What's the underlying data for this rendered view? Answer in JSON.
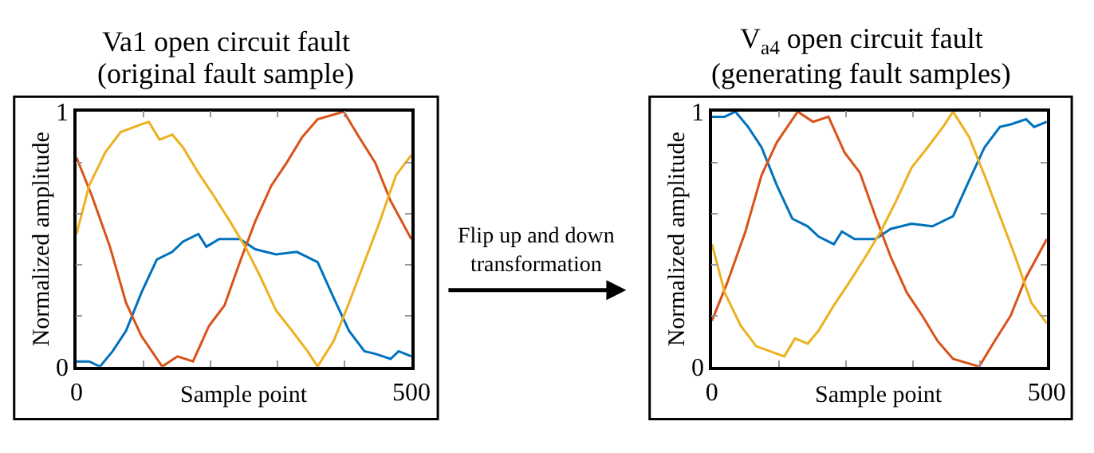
{
  "chart_data": [
    {
      "type": "line",
      "title": "Va1 open circuit fault",
      "subtitle": "(original fault sample)",
      "xlabel": "Sample point",
      "ylabel": "Normalized amplitude",
      "xlim": [
        0,
        500
      ],
      "ylim": [
        0,
        1
      ],
      "xticks": [
        0,
        {
          "value": 100,
          "label": null
        },
        {
          "value": 200,
          "label": null
        },
        {
          "value": 300,
          "label": null
        },
        {
          "value": 400,
          "label": null
        },
        500
      ],
      "yticks": [
        0,
        {
          "value": 0.2,
          "label": null
        },
        {
          "value": 0.4,
          "label": null
        },
        {
          "value": 0.6,
          "label": null
        },
        {
          "value": 0.8,
          "label": null
        },
        1
      ],
      "annotations": [
        "Flip up and down\ntransformation"
      ],
      "series": [
        {
          "color": "#0072bd",
          "x": [
            0,
            19,
            35,
            54,
            74,
            97,
            120,
            143,
            159,
            182,
            194,
            213,
            244,
            267,
            298,
            329,
            360,
            384,
            407,
            430,
            446,
            469,
            481,
            500
          ],
          "values": [
            0.02,
            0.02,
            0.0,
            0.06,
            0.14,
            0.29,
            0.42,
            0.45,
            0.49,
            0.52,
            0.47,
            0.5,
            0.5,
            0.46,
            0.44,
            0.45,
            0.41,
            0.27,
            0.14,
            0.06,
            0.05,
            0.03,
            0.06,
            0.04
          ]
        },
        {
          "color": "#d95319",
          "x": [
            0,
            23,
            50,
            74,
            97,
            128,
            151,
            174,
            198,
            221,
            244,
            267,
            291,
            314,
            337,
            360,
            399,
            422,
            446,
            469,
            500
          ],
          "values": [
            0.82,
            0.67,
            0.47,
            0.25,
            0.12,
            0.0,
            0.04,
            0.02,
            0.16,
            0.24,
            0.41,
            0.57,
            0.71,
            0.8,
            0.9,
            0.97,
            1.0,
            0.9,
            0.8,
            0.65,
            0.5
          ]
        },
        {
          "color": "#edb120",
          "x": [
            0,
            19,
            43,
            66,
            97,
            108,
            124,
            143,
            159,
            182,
            205,
            229,
            252,
            275,
            298,
            322,
            345,
            360,
            384,
            407,
            430,
            453,
            477,
            500
          ],
          "values": [
            0.52,
            0.71,
            0.84,
            0.92,
            0.95,
            0.96,
            0.89,
            0.91,
            0.86,
            0.76,
            0.67,
            0.57,
            0.47,
            0.35,
            0.22,
            0.14,
            0.06,
            0.0,
            0.1,
            0.25,
            0.41,
            0.57,
            0.75,
            0.83
          ]
        }
      ]
    },
    {
      "type": "line",
      "title": "V$_{a4}$ open circuit fault",
      "subtitle": "(generating fault samples)",
      "xlabel": "Sample point",
      "ylabel": "Normalized amplitude",
      "xlim": [
        0,
        500
      ],
      "ylim": [
        0,
        1
      ],
      "xticks": [
        0,
        {
          "value": 100,
          "label": null
        },
        {
          "value": 200,
          "label": null
        },
        {
          "value": 300,
          "label": null
        },
        {
          "value": 400,
          "label": null
        },
        500
      ],
      "yticks": [
        0,
        {
          "value": 0.2,
          "label": null
        },
        {
          "value": 0.4,
          "label": null
        },
        {
          "value": 0.6,
          "label": null
        },
        {
          "value": 0.8,
          "label": null
        },
        1
      ],
      "series": [
        {
          "color": "#0072bd",
          "x": [
            0,
            19,
            35,
            54,
            74,
            97,
            120,
            143,
            159,
            182,
            194,
            213,
            244,
            267,
            298,
            329,
            360,
            384,
            407,
            430,
            446,
            469,
            481,
            500
          ],
          "values": [
            0.98,
            0.98,
            1.0,
            0.94,
            0.86,
            0.71,
            0.58,
            0.55,
            0.51,
            0.48,
            0.53,
            0.5,
            0.5,
            0.54,
            0.56,
            0.55,
            0.59,
            0.73,
            0.86,
            0.94,
            0.95,
            0.97,
            0.94,
            0.96
          ]
        },
        {
          "color": "#d95319",
          "x": [
            0,
            23,
            50,
            74,
            97,
            128,
            151,
            174,
            198,
            221,
            244,
            267,
            291,
            314,
            337,
            360,
            399,
            422,
            446,
            469,
            500
          ],
          "values": [
            0.18,
            0.33,
            0.53,
            0.75,
            0.88,
            1.0,
            0.96,
            0.98,
            0.84,
            0.76,
            0.59,
            0.43,
            0.29,
            0.2,
            0.1,
            0.03,
            0.0,
            0.1,
            0.2,
            0.35,
            0.5
          ]
        },
        {
          "color": "#edb120",
          "x": [
            0,
            19,
            43,
            66,
            97,
            108,
            124,
            143,
            159,
            182,
            205,
            229,
            252,
            275,
            298,
            322,
            345,
            360,
            384,
            407,
            430,
            453,
            477,
            500
          ],
          "values": [
            0.48,
            0.29,
            0.16,
            0.08,
            0.05,
            0.04,
            0.11,
            0.09,
            0.14,
            0.24,
            0.33,
            0.43,
            0.53,
            0.65,
            0.78,
            0.86,
            0.94,
            1.0,
            0.9,
            0.75,
            0.59,
            0.43,
            0.25,
            0.17
          ]
        }
      ]
    }
  ]
}
